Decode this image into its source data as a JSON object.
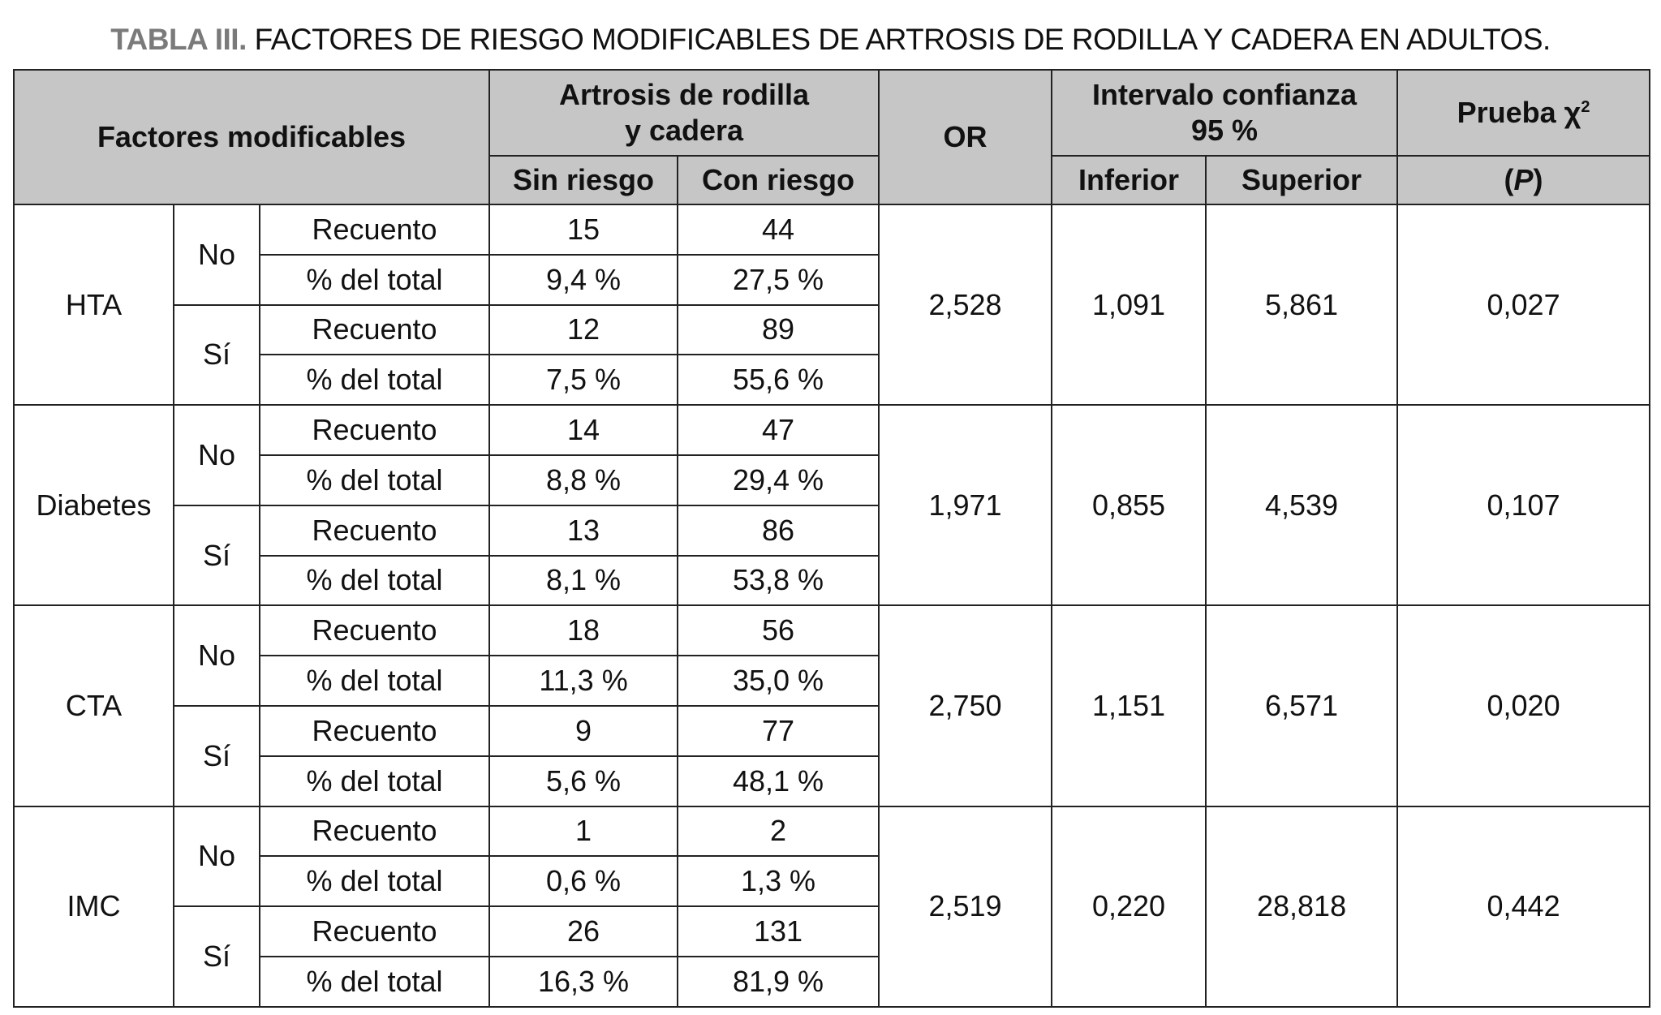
{
  "title": {
    "label": "TABLA III.",
    "text": "FACTORES DE RIESGO MODIFICABLES DE ARTROSIS DE RODILLA Y CADERA EN ADULTOS."
  },
  "header": {
    "factores": "Factores modificables",
    "artrosis_line1": "Artrosis de rodilla",
    "artrosis_line2": "y cadera",
    "sin_riesgo": "Sin riesgo",
    "con_riesgo": "Con riesgo",
    "or": "OR",
    "ic_line1": "Intervalo confianza",
    "ic_line2": "95 %",
    "inferior": "Inferior",
    "superior": "Superior",
    "prueba": "Prueba χ",
    "prueba_sup": "2",
    "p_open": "(",
    "p": "P",
    "p_close": ")"
  },
  "rows": [
    {
      "factor": "HTA",
      "or": "2,528",
      "inferior": "1,091",
      "superior": "5,861",
      "p": "0,027",
      "groups": [
        {
          "label": "No",
          "recuento": [
            "15",
            "44"
          ],
          "pct": [
            "9,4 %",
            "27,5 %"
          ]
        },
        {
          "label": "Sí",
          "recuento": [
            "12",
            "89"
          ],
          "pct": [
            "7,5 %",
            "55,6 %"
          ]
        }
      ]
    },
    {
      "factor": "Diabetes",
      "or": "1,971",
      "inferior": "0,855",
      "superior": "4,539",
      "p": "0,107",
      "groups": [
        {
          "label": "No",
          "recuento": [
            "14",
            "47"
          ],
          "pct": [
            "8,8 %",
            "29,4 %"
          ]
        },
        {
          "label": "Sí",
          "recuento": [
            "13",
            "86"
          ],
          "pct": [
            "8,1 %",
            "53,8 %"
          ]
        }
      ]
    },
    {
      "factor": "CTA",
      "or": "2,750",
      "inferior": "1,151",
      "superior": "6,571",
      "p": "0,020",
      "groups": [
        {
          "label": "No",
          "recuento": [
            "18",
            "56"
          ],
          "pct": [
            "11,3 %",
            "35,0 %"
          ]
        },
        {
          "label": "Sí",
          "recuento": [
            "9",
            "77"
          ],
          "pct": [
            "5,6 %",
            "48,1 %"
          ]
        }
      ]
    },
    {
      "factor": "IMC",
      "or": "2,519",
      "inferior": "0,220",
      "superior": "28,818",
      "p": "0,442",
      "groups": [
        {
          "label": "No",
          "recuento": [
            "1",
            "2"
          ],
          "pct": [
            "0,6 %",
            "1,3 %"
          ]
        },
        {
          "label": "Sí",
          "recuento": [
            "26",
            "131"
          ],
          "pct": [
            "16,3 %",
            "81,9 %"
          ]
        }
      ]
    }
  ],
  "labels": {
    "recuento": "Recuento",
    "pct": "% del total"
  },
  "colors": {
    "header_bg": "#c6c6c6",
    "title_label": "#7a7a7a"
  }
}
